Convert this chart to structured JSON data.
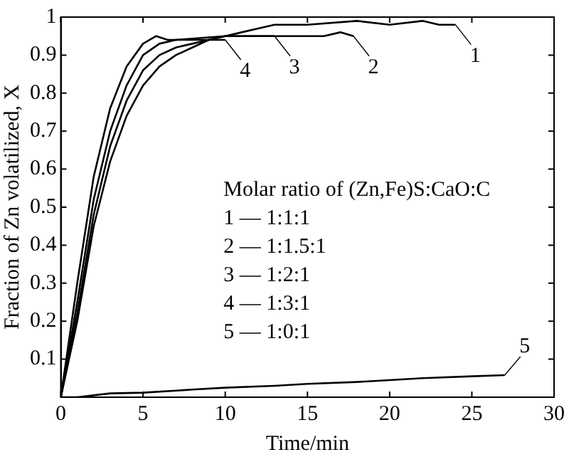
{
  "chart_data": {
    "type": "line",
    "xlabel": "Time/min",
    "ylabel": "Fraction of Zn volatilized, X",
    "xlim": [
      0,
      30
    ],
    "xticks": [
      0,
      5,
      10,
      15,
      20,
      25,
      30
    ],
    "ylim": [
      0,
      1
    ],
    "yticks": [
      0.1,
      0.2,
      0.3,
      0.4,
      0.5,
      0.6,
      0.7,
      0.8,
      0.9,
      1.0
    ],
    "grid": false,
    "legend": "right",
    "marker": "none",
    "line_style": "solid",
    "series": [
      {
        "name": "1",
        "color": "#000000",
        "x": [
          0,
          1,
          2,
          3,
          4,
          5,
          6,
          7,
          8,
          9,
          10,
          11,
          12,
          13,
          15,
          18,
          20,
          22,
          23,
          24
        ],
        "values": [
          0,
          0.2,
          0.45,
          0.62,
          0.74,
          0.82,
          0.87,
          0.9,
          0.92,
          0.94,
          0.95,
          0.96,
          0.97,
          0.98,
          0.98,
          0.99,
          0.98,
          0.99,
          0.98,
          0.98
        ]
      },
      {
        "name": "2",
        "color": "#000000",
        "x": [
          0,
          1,
          2,
          3,
          4,
          5,
          6,
          7,
          10,
          14,
          16,
          17,
          17.8
        ],
        "values": [
          0,
          0.25,
          0.52,
          0.7,
          0.82,
          0.9,
          0.93,
          0.94,
          0.95,
          0.95,
          0.95,
          0.96,
          0.95
        ]
      },
      {
        "name": "3",
        "color": "#000000",
        "x": [
          0,
          1,
          2,
          3,
          4,
          5,
          6,
          7,
          8,
          9,
          10,
          11,
          13
        ],
        "values": [
          0,
          0.22,
          0.48,
          0.66,
          0.78,
          0.86,
          0.9,
          0.92,
          0.93,
          0.94,
          0.95,
          0.95,
          0.95
        ]
      },
      {
        "name": "4",
        "color": "#000000",
        "x": [
          0,
          1,
          2,
          3,
          4,
          5,
          5.8,
          6.5,
          8,
          10
        ],
        "values": [
          0,
          0.3,
          0.58,
          0.76,
          0.87,
          0.93,
          0.95,
          0.94,
          0.94,
          0.94
        ]
      },
      {
        "name": "5",
        "color": "#000000",
        "x": [
          0,
          1,
          3,
          5,
          8,
          10,
          13,
          15,
          18,
          20,
          22,
          25,
          27
        ],
        "values": [
          0,
          0,
          0.01,
          0.012,
          0.02,
          0.025,
          0.03,
          0.035,
          0.04,
          0.045,
          0.05,
          0.055,
          0.058
        ]
      }
    ],
    "annotations": [
      "Molar ratio of (Zn,Fe)S:CaO:C",
      "1 — 1:1:1",
      "2 — 1:1.5:1",
      "3 — 1:2:1",
      "4 — 1:3:1",
      "5 — 1:0:1"
    ]
  }
}
